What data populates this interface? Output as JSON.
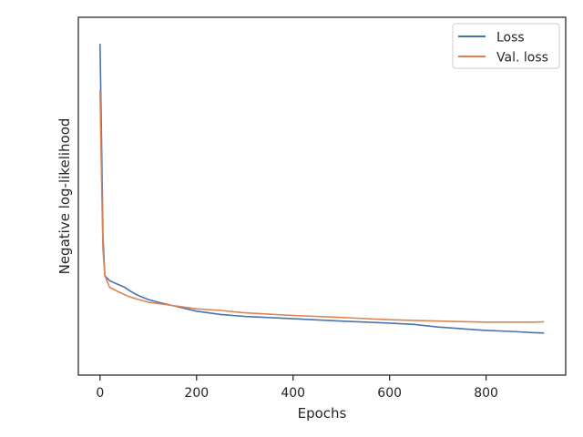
{
  "chart_data": {
    "type": "line",
    "xlabel": "Epochs",
    "ylabel": "Negative log-likelihood",
    "xlim": [
      -45,
      965
    ],
    "ylim": [
      0.0,
      1.08
    ],
    "x_ticks": [
      0,
      200,
      400,
      600,
      800
    ],
    "y_ticks_shown": false,
    "grid": false,
    "legend_position": "top-right",
    "series": [
      {
        "name": "Loss",
        "color": "#4c72b0",
        "points": [
          [
            0,
            1.0
          ],
          [
            3,
            0.72
          ],
          [
            6,
            0.42
          ],
          [
            10,
            0.3
          ],
          [
            20,
            0.285
          ],
          [
            30,
            0.278
          ],
          [
            40,
            0.272
          ],
          [
            50,
            0.266
          ],
          [
            60,
            0.256
          ],
          [
            70,
            0.247
          ],
          [
            80,
            0.24
          ],
          [
            100,
            0.228
          ],
          [
            120,
            0.22
          ],
          [
            150,
            0.21
          ],
          [
            200,
            0.193
          ],
          [
            250,
            0.183
          ],
          [
            300,
            0.177
          ],
          [
            400,
            0.17
          ],
          [
            500,
            0.163
          ],
          [
            600,
            0.157
          ],
          [
            650,
            0.153
          ],
          [
            700,
            0.145
          ],
          [
            750,
            0.14
          ],
          [
            800,
            0.135
          ],
          [
            850,
            0.132
          ],
          [
            900,
            0.128
          ],
          [
            920,
            0.127
          ]
        ]
      },
      {
        "name": "Val. loss",
        "color": "#dd8452",
        "points": [
          [
            0,
            0.86
          ],
          [
            3,
            0.6
          ],
          [
            6,
            0.38
          ],
          [
            10,
            0.3
          ],
          [
            20,
            0.265
          ],
          [
            40,
            0.25
          ],
          [
            60,
            0.237
          ],
          [
            80,
            0.228
          ],
          [
            100,
            0.22
          ],
          [
            150,
            0.21
          ],
          [
            200,
            0.2
          ],
          [
            250,
            0.195
          ],
          [
            300,
            0.188
          ],
          [
            400,
            0.18
          ],
          [
            500,
            0.174
          ],
          [
            600,
            0.167
          ],
          [
            700,
            0.163
          ],
          [
            800,
            0.16
          ],
          [
            900,
            0.16
          ],
          [
            920,
            0.161
          ]
        ]
      }
    ]
  }
}
